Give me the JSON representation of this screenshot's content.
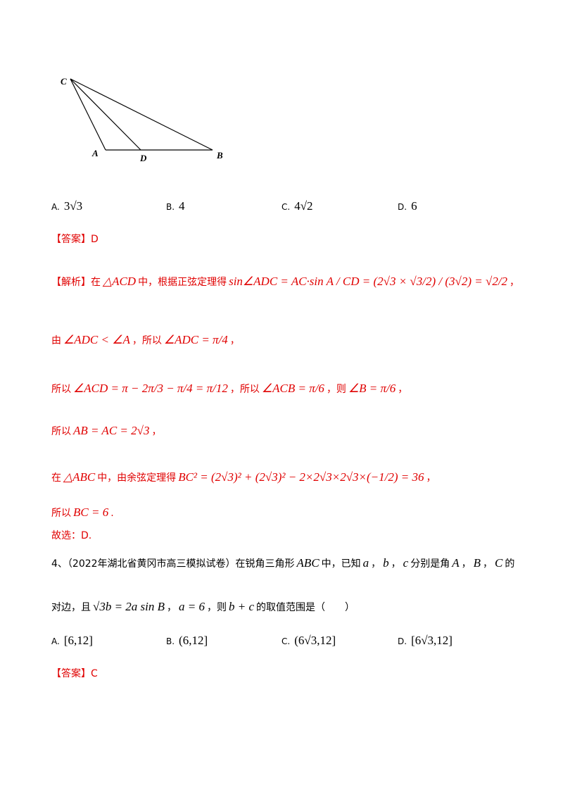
{
  "figure": {
    "labels": [
      "C",
      "A",
      "D",
      "B"
    ]
  },
  "q3_options": [
    {
      "letter": "A.",
      "text": "3√3"
    },
    {
      "letter": "B.",
      "text": "4"
    },
    {
      "letter": "C.",
      "text": "4√2"
    },
    {
      "letter": "D.",
      "text": "6"
    }
  ],
  "q3_answer": {
    "tag": "【答案】",
    "text": "D"
  },
  "q3_analysis": [
    [
      "【解析】在",
      "△ACD",
      "中，根据正弦定理得",
      "sin∠ADC = AC·sin A / CD = (2√3 × √3/2) / (3√2) = √2/2",
      "，"
    ],
    [
      "由",
      "∠ADC < ∠A",
      "，所以",
      "∠ADC = π/4",
      "，"
    ],
    [
      "所以",
      "∠ACD = π − 2π/3 − π/4 = π/12",
      "，所以",
      "∠ACB = π/6",
      "，则",
      "∠B = π/6",
      "，"
    ],
    [
      "所以",
      "AB = AC = 2√3",
      "，"
    ],
    [
      "在",
      "△ABC",
      "中，由余弦定理得",
      "BC² = (2√3)² + (2√3)² − 2×2√3×2√3×(−1/2) = 36",
      "，"
    ],
    [
      "所以",
      "BC = 6",
      "."
    ],
    [
      "故选：D."
    ]
  ],
  "q4_stem": [
    [
      "4、（2022年湖北省黄冈市高三模拟试卷）在锐角三角形",
      "ABC",
      "中，已知",
      "a",
      "，",
      "b",
      "，",
      "c",
      "分别是角",
      "A",
      "，",
      "B",
      "，",
      "C",
      "的"
    ],
    [
      "对边，且",
      "√3b = 2a sin B",
      "，",
      "a = 6",
      "，则",
      "b + c",
      "的取值范围是（　　）"
    ]
  ],
  "q4_options": [
    {
      "letter": "A.",
      "text": "[6,12]"
    },
    {
      "letter": "B.",
      "text": "(6,12]"
    },
    {
      "letter": "C.",
      "text": "(6√3,12]"
    },
    {
      "letter": "D.",
      "text": "[6√3,12]"
    }
  ],
  "q4_answer": {
    "tag": "【答案】",
    "text": "C"
  }
}
